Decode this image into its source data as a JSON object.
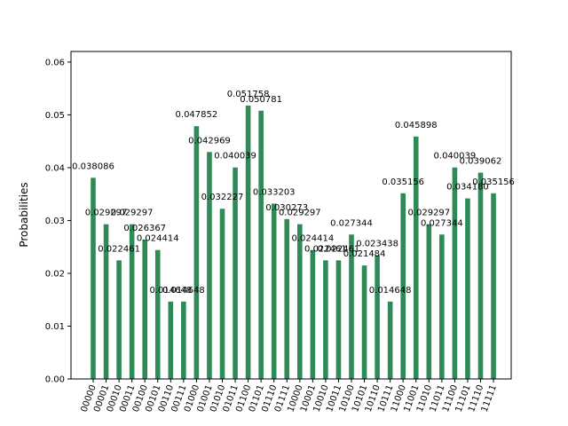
{
  "chart_data": {
    "type": "bar",
    "title": "",
    "xlabel": "",
    "ylabel": "Probabilities",
    "ylim": [
      0,
      0.062
    ],
    "yticks": [
      "0.00",
      "0.01",
      "0.02",
      "0.03",
      "0.04",
      "0.05",
      "0.06"
    ],
    "ytick_values": [
      0,
      0.01,
      0.02,
      0.03,
      0.04,
      0.05,
      0.06
    ],
    "bar_color": "#2e8b57",
    "grid": false,
    "categories": [
      "00000",
      "00001",
      "00010",
      "00011",
      "00100",
      "00101",
      "00110",
      "00111",
      "01000",
      "01001",
      "01010",
      "01011",
      "01100",
      "01101",
      "01110",
      "01111",
      "10000",
      "10001",
      "10010",
      "10011",
      "10100",
      "10101",
      "10110",
      "10111",
      "11000",
      "11001",
      "11010",
      "11011",
      "11100",
      "11101",
      "11110",
      "11111"
    ],
    "values": [
      0.038086,
      0.029297,
      0.022461,
      0.029297,
      0.026367,
      0.024414,
      0.014648,
      0.014648,
      0.047852,
      0.042969,
      0.032227,
      0.040039,
      0.051758,
      0.050781,
      0.033203,
      0.030273,
      0.029297,
      0.024414,
      0.022461,
      0.022461,
      0.027344,
      0.021484,
      0.023438,
      0.014648,
      0.035156,
      0.045898,
      0.029297,
      0.027344,
      0.040039,
      0.03418,
      0.039062,
      0.035156
    ],
    "labels": [
      "0.038086",
      "0.029297",
      "0.022461",
      "0.029297",
      "0.026367",
      "0.024414",
      "0.014648",
      "0.014648",
      "0.047852",
      "0.042969",
      "0.032227",
      "0.040039",
      "0.051758",
      "0.050781",
      "0.033203",
      "0.030273",
      "0.029297",
      "0.024414",
      "0.022461",
      "0.022461",
      "0.027344",
      "0.021484",
      "0.023438",
      "0.014648",
      "0.035156",
      "0.045898",
      "0.029297",
      "0.027344",
      "0.040039",
      "0.034180",
      "0.039062",
      "0.035156"
    ]
  }
}
